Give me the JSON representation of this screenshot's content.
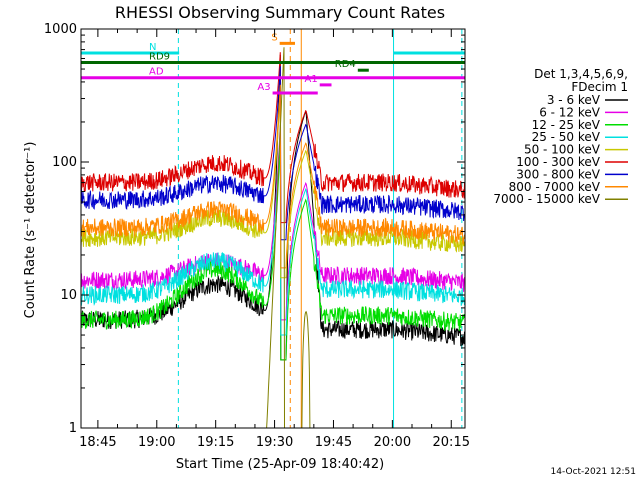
{
  "chart_data": {
    "type": "line",
    "title": "RHESSI Observing Summary Count Rates",
    "xlabel": "Start Time (25-Apr-09 18:40:42)",
    "ylabel": "Count Rate (s⁻¹ detector⁻¹)",
    "yscale": "log",
    "ylim": [
      1,
      1000
    ],
    "xlim_minutes": [
      40.7,
      138.5
    ],
    "x_tick_labels": [
      "18:45",
      "19:00",
      "19:15",
      "19:30",
      "19:45",
      "20:00",
      "20:15"
    ],
    "x_tick_minutes": [
      45,
      60,
      75,
      90,
      105,
      120,
      135
    ],
    "y_tick_labels": [
      "1",
      "10",
      "100",
      "1000"
    ],
    "y_tick_values": [
      1,
      10,
      100,
      1000
    ],
    "legend_header": [
      "Det 1,3,4,5,6,9,",
      "FDecim 1"
    ],
    "series": [
      {
        "name": "3 - 6 keV",
        "color": "#000000",
        "base": 6.5,
        "peak_amp": 5.5,
        "flare_peak": 700,
        "post_level": 5.5
      },
      {
        "name": "6 - 12 keV",
        "color": "#e600e6",
        "base": 13,
        "peak_amp": 5,
        "flare_peak": 200,
        "post_level": 14
      },
      {
        "name": "12 - 25 keV",
        "color": "#00dd00",
        "base": 6.5,
        "peak_amp": 9,
        "flare_peak": 150,
        "post_level": 7
      },
      {
        "name": "25 - 50 keV",
        "color": "#00e0e0",
        "base": 10,
        "peak_amp": 8,
        "flare_peak": 180,
        "post_level": 11
      },
      {
        "name": "50 - 100 keV",
        "color": "#c8c800",
        "base": 27,
        "peak_amp": 11,
        "flare_peak": 350,
        "post_level": 27
      },
      {
        "name": "100 - 300 keV",
        "color": "#dd0000",
        "base": 70,
        "peak_amp": 28,
        "flare_peak": 700,
        "post_level": 70
      },
      {
        "name": "300 - 800 keV",
        "color": "#0000cc",
        "base": 52,
        "peak_amp": 17,
        "flare_peak": 550,
        "post_level": 48
      },
      {
        "name": "800 - 7000 keV",
        "color": "#ff8800",
        "base": 32,
        "peak_amp": 12,
        "flare_peak": 400,
        "post_level": 32
      },
      {
        "name": "7000 - 15000 keV",
        "color": "#808000",
        "base": 0,
        "peak_amp": 0,
        "flare_peak": 400,
        "post_level": 0
      }
    ],
    "flare_minutes": {
      "rise_start": 87.5,
      "peak": 91.5,
      "drop": 93,
      "second_peak": 98
    },
    "annotations": [
      {
        "label": "N",
        "color": "#00e0e0",
        "start": 40.7,
        "end": 65.7,
        "y": 660
      },
      {
        "label": "",
        "color": "#00e0e0",
        "start": 120.3,
        "end": 138.5,
        "y": 660
      },
      {
        "label": "S",
        "color": "#ff8800",
        "start": 91.3,
        "end": 95.2,
        "y": 780
      },
      {
        "label": "RD9",
        "color": "#006600",
        "start": 40.7,
        "end": 138.5,
        "y": 560
      },
      {
        "label": "RD4",
        "color": "#006600",
        "start": 111.2,
        "end": 114.0,
        "y": 490
      },
      {
        "label": "AD",
        "color": "#e600e6",
        "start": 40.7,
        "end": 138.5,
        "y": 430
      },
      {
        "label": "A1",
        "color": "#e600e6",
        "start": 101.5,
        "end": 104.5,
        "y": 380
      },
      {
        "label": "A3",
        "color": "#e600e6",
        "start": 89.5,
        "end": 101.0,
        "y": 330
      }
    ],
    "vlines": [
      {
        "minutes": 65.5,
        "color": "#00e0e0",
        "dash": true
      },
      {
        "minutes": 120.3,
        "color": "#00e0e0",
        "dash": false
      },
      {
        "minutes": 137.7,
        "color": "#00e0e0",
        "dash": true
      },
      {
        "minutes": 94.0,
        "color": "#ff8800",
        "dash": true
      },
      {
        "minutes": 96.8,
        "color": "#ff8800",
        "dash": false
      }
    ],
    "footer_date": "14-Oct-2021 12:51",
    "grid": false,
    "legend_placement": "right"
  }
}
